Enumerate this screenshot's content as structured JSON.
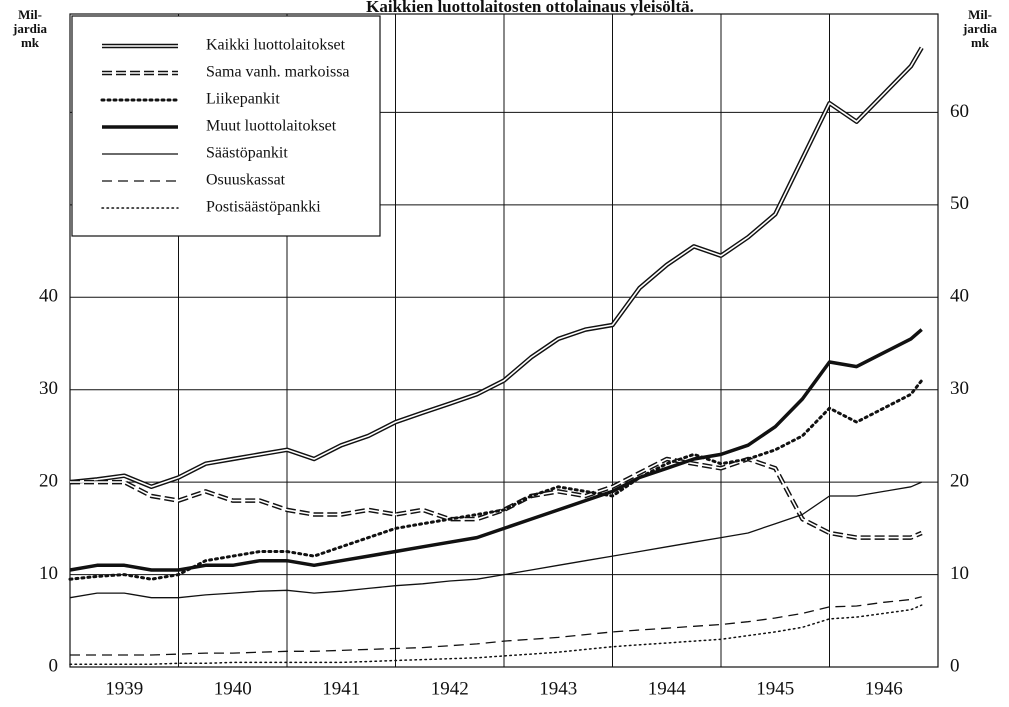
{
  "chart_data": {
    "type": "line",
    "title": "Kaikkien luottolaitosten ottolainaus yleisöltä.",
    "ylabel": [
      "Mil-",
      "jardia",
      "mk"
    ],
    "y2label": [
      "Mil-",
      "jardia",
      "mk"
    ],
    "xlim": [
      1939,
      1947
    ],
    "xgrid": [
      1940,
      1941,
      1942,
      1943,
      1944,
      1945,
      1946
    ],
    "xticks": [
      {
        "value": 1939.5,
        "label": "1939"
      },
      {
        "value": 1940.5,
        "label": "1940"
      },
      {
        "value": 1941.5,
        "label": "1941"
      },
      {
        "value": 1942.5,
        "label": "1942"
      },
      {
        "value": 1943.5,
        "label": "1943"
      },
      {
        "value": 1944.5,
        "label": "1944"
      },
      {
        "value": 1945.5,
        "label": "1945"
      },
      {
        "value": 1946.5,
        "label": "1946"
      }
    ],
    "ylim": [
      0,
      70
    ],
    "yticks": [
      0,
      10,
      20,
      30,
      40
    ],
    "y2lim": [
      0,
      70
    ],
    "y2ticks": [
      0,
      10,
      20,
      30,
      40,
      50,
      60
    ],
    "grid": true,
    "legend": "upper-left",
    "x": [
      1939,
      1939.25,
      1939.5,
      1939.75,
      1940,
      1940.25,
      1940.5,
      1940.75,
      1941,
      1941.25,
      1941.5,
      1941.75,
      1942,
      1942.25,
      1942.5,
      1942.75,
      1943,
      1943.25,
      1943.5,
      1943.75,
      1944,
      1944.25,
      1944.5,
      1944.75,
      1945,
      1945.25,
      1945.5,
      1945.75,
      1946,
      1946.25,
      1946.5,
      1946.75,
      1946.85
    ],
    "series": [
      {
        "name": "Kaikki luottolaitokset",
        "color": "#111111",
        "style": "double",
        "values": [
          20,
          20.3,
          20.7,
          19.5,
          20.5,
          22,
          22.5,
          23,
          23.5,
          22.5,
          24,
          25,
          26.5,
          27.5,
          28.5,
          29.5,
          31,
          33.5,
          35.5,
          36.5,
          37,
          41,
          43.5,
          45.5,
          44.5,
          46.5,
          49,
          55,
          61,
          59,
          62,
          65,
          67
        ]
      },
      {
        "name": "Sama vanh. markoissa",
        "color": "#111111",
        "style": "double-dash",
        "values": [
          20,
          20,
          20,
          18.5,
          18,
          19,
          18,
          18,
          17,
          16.5,
          16.5,
          17,
          16.5,
          17,
          16,
          16,
          17,
          18.5,
          19,
          18.5,
          19.5,
          21,
          22.5,
          22,
          21.5,
          22.5,
          21.5,
          16,
          14.5,
          14,
          14,
          14,
          14.5
        ]
      },
      {
        "name": "Liikepankit",
        "color": "#111111",
        "style": "dotted-thick",
        "values": [
          9.5,
          9.8,
          10,
          9.5,
          10,
          11.5,
          12,
          12.5,
          12.5,
          12,
          13,
          14,
          15,
          15.5,
          16,
          16.5,
          17,
          18.5,
          19.5,
          19,
          18.5,
          20.5,
          22,
          23,
          22,
          22.5,
          23.5,
          25,
          28,
          26.5,
          28,
          29.5,
          31
        ]
      },
      {
        "name": "Muut luottolaitokset",
        "color": "#111111",
        "style": "thick",
        "values": [
          10.5,
          11,
          11,
          10.5,
          10.5,
          11,
          11,
          11.5,
          11.5,
          11,
          11.5,
          12,
          12.5,
          13,
          13.5,
          14,
          15,
          16,
          17,
          18,
          19,
          20.5,
          21.5,
          22.5,
          23,
          24,
          26,
          29,
          33,
          32.5,
          34,
          35.5,
          36.5
        ]
      },
      {
        "name": "Säästöpankit",
        "color": "#111111",
        "style": "thin",
        "values": [
          7.5,
          8,
          8,
          7.5,
          7.5,
          7.8,
          8,
          8.2,
          8.3,
          8,
          8.2,
          8.5,
          8.8,
          9,
          9.3,
          9.5,
          10,
          10.5,
          11,
          11.5,
          12,
          12.5,
          13,
          13.5,
          14,
          14.5,
          15.5,
          16.5,
          18.5,
          18.5,
          19,
          19.5,
          20
        ]
      },
      {
        "name": "Osuuskassat",
        "color": "#111111",
        "style": "dashed",
        "values": [
          1.3,
          1.3,
          1.3,
          1.3,
          1.4,
          1.5,
          1.5,
          1.6,
          1.7,
          1.7,
          1.8,
          1.9,
          2.0,
          2.1,
          2.3,
          2.5,
          2.8,
          3.0,
          3.2,
          3.5,
          3.8,
          4.0,
          4.2,
          4.4,
          4.6,
          4.9,
          5.3,
          5.8,
          6.5,
          6.6,
          7.0,
          7.3,
          7.6
        ]
      },
      {
        "name": "Postisäästöpankki",
        "color": "#111111",
        "style": "dotted",
        "values": [
          0.3,
          0.3,
          0.3,
          0.3,
          0.4,
          0.4,
          0.5,
          0.5,
          0.5,
          0.5,
          0.5,
          0.6,
          0.7,
          0.8,
          0.9,
          1.0,
          1.2,
          1.4,
          1.6,
          1.9,
          2.2,
          2.4,
          2.6,
          2.8,
          3.0,
          3.4,
          3.8,
          4.3,
          5.2,
          5.4,
          5.8,
          6.2,
          6.7
        ]
      }
    ]
  }
}
